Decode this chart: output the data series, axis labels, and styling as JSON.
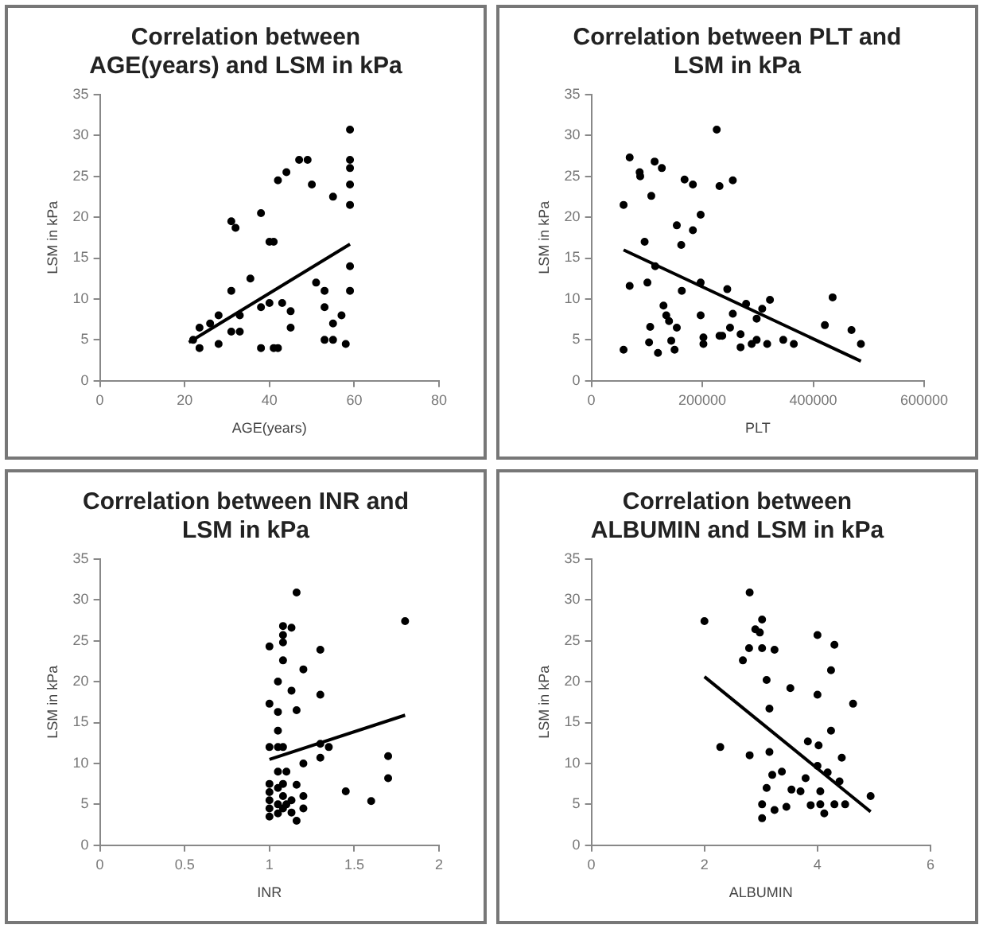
{
  "chart_data": [
    {
      "type": "scatter",
      "title": "Correlation between AGE(years) and LSM in kPa",
      "xlabel": "AGE(years)",
      "ylabel": "LSM in kPa",
      "xlim": [
        0,
        80
      ],
      "xticks": [
        0,
        20,
        40,
        60,
        80
      ],
      "ylim": [
        0,
        35
      ],
      "yticks": [
        0,
        5,
        10,
        15,
        20,
        25,
        30,
        35
      ],
      "grid": false,
      "legend": false,
      "series": [
        {
          "marker": "circle",
          "color": "#000000",
          "x": [
            31,
            32,
            38,
            40,
            41,
            42,
            44,
            47,
            49,
            50,
            55,
            59,
            59,
            59,
            59,
            59,
            59,
            59,
            51,
            53,
            53,
            55,
            57,
            53,
            55,
            58,
            45,
            45,
            43,
            40,
            38,
            35.5,
            31,
            31,
            33,
            38,
            41,
            42,
            28,
            23.5,
            23.5,
            26,
            22,
            28,
            33
          ],
          "values": [
            19.5,
            18.7,
            20.5,
            17,
            17,
            24.5,
            25.5,
            27,
            27,
            24,
            22.5,
            30.7,
            27,
            26,
            24,
            21.5,
            14,
            11,
            12,
            11,
            9,
            7,
            8,
            5,
            5,
            4.5,
            6.5,
            8.5,
            9.5,
            9.5,
            9,
            12.5,
            11,
            6,
            6,
            4,
            4,
            4,
            4.5,
            4,
            6.5,
            7,
            5,
            8,
            8
          ]
        },
        {
          "type": "line",
          "marker": "none",
          "color": "#000000",
          "x": [
            21,
            59
          ],
          "values": [
            4.7,
            16.7
          ]
        }
      ]
    },
    {
      "type": "scatter",
      "title": "Correlation between PLT and LSM in kPa",
      "xlabel": "PLT",
      "ylabel": "LSM in kPa",
      "xlim": [
        0,
        600000
      ],
      "xticks": [
        0,
        200000,
        400000,
        600000
      ],
      "ylim": [
        0,
        35
      ],
      "yticks": [
        0,
        5,
        10,
        15,
        20,
        25,
        30,
        35
      ],
      "grid": false,
      "legend": false,
      "series": [
        {
          "marker": "circle",
          "color": "#000000",
          "x": [
            58000,
            69000,
            87000,
            88000,
            69000,
            58000,
            96000,
            101000,
            108000,
            114000,
            127000,
            115000,
            106000,
            104000,
            120000,
            130000,
            135000,
            140000,
            144000,
            150000,
            154000,
            154000,
            162000,
            163000,
            168000,
            183000,
            183000,
            197000,
            197000,
            197000,
            202000,
            202000,
            226000,
            231000,
            255000,
            231000,
            236000,
            245000,
            255000,
            250000,
            269000,
            279000,
            269000,
            289000,
            298000,
            298000,
            308000,
            322000,
            317000,
            346000,
            365000,
            421000,
            435000,
            469000,
            486000
          ],
          "values": [
            21.5,
            27.3,
            25.5,
            25,
            11.6,
            3.8,
            17,
            12,
            22.6,
            26.8,
            26,
            14,
            6.6,
            4.7,
            3.4,
            9.2,
            8,
            7.3,
            4.9,
            3.8,
            6.5,
            19,
            16.6,
            11,
            24.6,
            24,
            18.4,
            20.3,
            12,
            8,
            5.3,
            4.5,
            30.7,
            23.8,
            24.5,
            5.5,
            5.5,
            11.2,
            8.2,
            6.5,
            5.7,
            9.4,
            4.1,
            4.5,
            5,
            7.6,
            8.8,
            9.9,
            4.5,
            5,
            4.5,
            6.8,
            10.2,
            6.2,
            4.5
          ]
        },
        {
          "type": "line",
          "marker": "none",
          "color": "#000000",
          "x": [
            58000,
            486000
          ],
          "values": [
            16,
            2.4
          ]
        }
      ]
    },
    {
      "type": "scatter",
      "title": "Correlation between INR and LSM in kPa",
      "xlabel": "INR",
      "ylabel": "LSM in kPa",
      "xlim": [
        0,
        2
      ],
      "xticks": [
        0,
        0.5,
        1,
        1.5,
        2
      ],
      "ylim": [
        0,
        35
      ],
      "yticks": [
        0,
        5,
        10,
        15,
        20,
        25,
        30,
        35
      ],
      "grid": false,
      "legend": false,
      "series": [
        {
          "marker": "circle",
          "color": "#000000",
          "x": [
            1,
            1,
            1,
            1,
            1,
            1,
            1,
            1,
            1.05,
            1.05,
            1.05,
            1.05,
            1.05,
            1.05,
            1.05,
            1.05,
            1.08,
            1.08,
            1.08,
            1.08,
            1.08,
            1.08,
            1.08,
            1.08,
            1.1,
            1.1,
            1.13,
            1.13,
            1.13,
            1.13,
            1.16,
            1.16,
            1.16,
            1.16,
            1.2,
            1.2,
            1.2,
            1.2,
            1.3,
            1.3,
            1.3,
            1.3,
            1.35,
            1.45,
            1.6,
            1.7,
            1.7,
            1.8
          ],
          "values": [
            7.5,
            6.5,
            5.5,
            4.5,
            3.5,
            24.3,
            17.3,
            12,
            20,
            16.3,
            14,
            12,
            9,
            7,
            5,
            3.9,
            26.8,
            25.7,
            24.8,
            22.6,
            12,
            4.5,
            6,
            7.5,
            9,
            5,
            26.6,
            18.9,
            5.5,
            4,
            30.9,
            16.5,
            7.4,
            3,
            21.5,
            10,
            6,
            4.5,
            23.9,
            18.4,
            10.7,
            12.4,
            12,
            6.6,
            5.4,
            10.9,
            8.2,
            27.4
          ]
        },
        {
          "type": "line",
          "marker": "none",
          "color": "#000000",
          "x": [
            1,
            1.8
          ],
          "values": [
            10.5,
            15.9
          ]
        }
      ]
    },
    {
      "type": "scatter",
      "title": "Correlation between ALBUMIN and LSM in kPa",
      "xlabel": "ALBUMIN",
      "ylabel": "LSM in kPa",
      "xlim": [
        0,
        6
      ],
      "xticks": [
        0,
        2,
        4,
        6
      ],
      "ylim": [
        0,
        35
      ],
      "yticks": [
        0,
        5,
        10,
        15,
        20,
        25,
        30,
        35
      ],
      "grid": false,
      "legend": false,
      "series": [
        {
          "marker": "circle",
          "color": "#000000",
          "x": [
            2,
            2.28,
            2.68,
            2.8,
            2.79,
            2.8,
            2.9,
            2.98,
            3.02,
            3.02,
            3.1,
            3.15,
            3.24,
            3.15,
            3.1,
            3.02,
            3.02,
            3.2,
            3.37,
            3.24,
            3.45,
            3.52,
            3.54,
            3.7,
            3.83,
            3.79,
            3.88,
            4,
            4,
            4.02,
            4,
            4.05,
            4.05,
            4.12,
            4.18,
            4.24,
            4.24,
            4.3,
            4.3,
            4.39,
            4.43,
            4.49,
            4.63,
            4.94
          ],
          "values": [
            27.4,
            12,
            22.6,
            30.9,
            24.1,
            11,
            26.4,
            26,
            27.6,
            24.1,
            20.2,
            16.7,
            23.9,
            11.4,
            7,
            5,
            3.3,
            8.6,
            9,
            4.3,
            4.7,
            19.2,
            6.8,
            6.6,
            12.7,
            8.2,
            4.9,
            25.7,
            18.4,
            12.2,
            9.7,
            6.6,
            5,
            3.9,
            8.9,
            21.4,
            14,
            24.5,
            5,
            7.8,
            10.7,
            5,
            17.3,
            6
          ]
        },
        {
          "type": "line",
          "marker": "none",
          "color": "#000000",
          "x": [
            2,
            4.94
          ],
          "values": [
            20.6,
            4.1
          ]
        }
      ]
    }
  ]
}
